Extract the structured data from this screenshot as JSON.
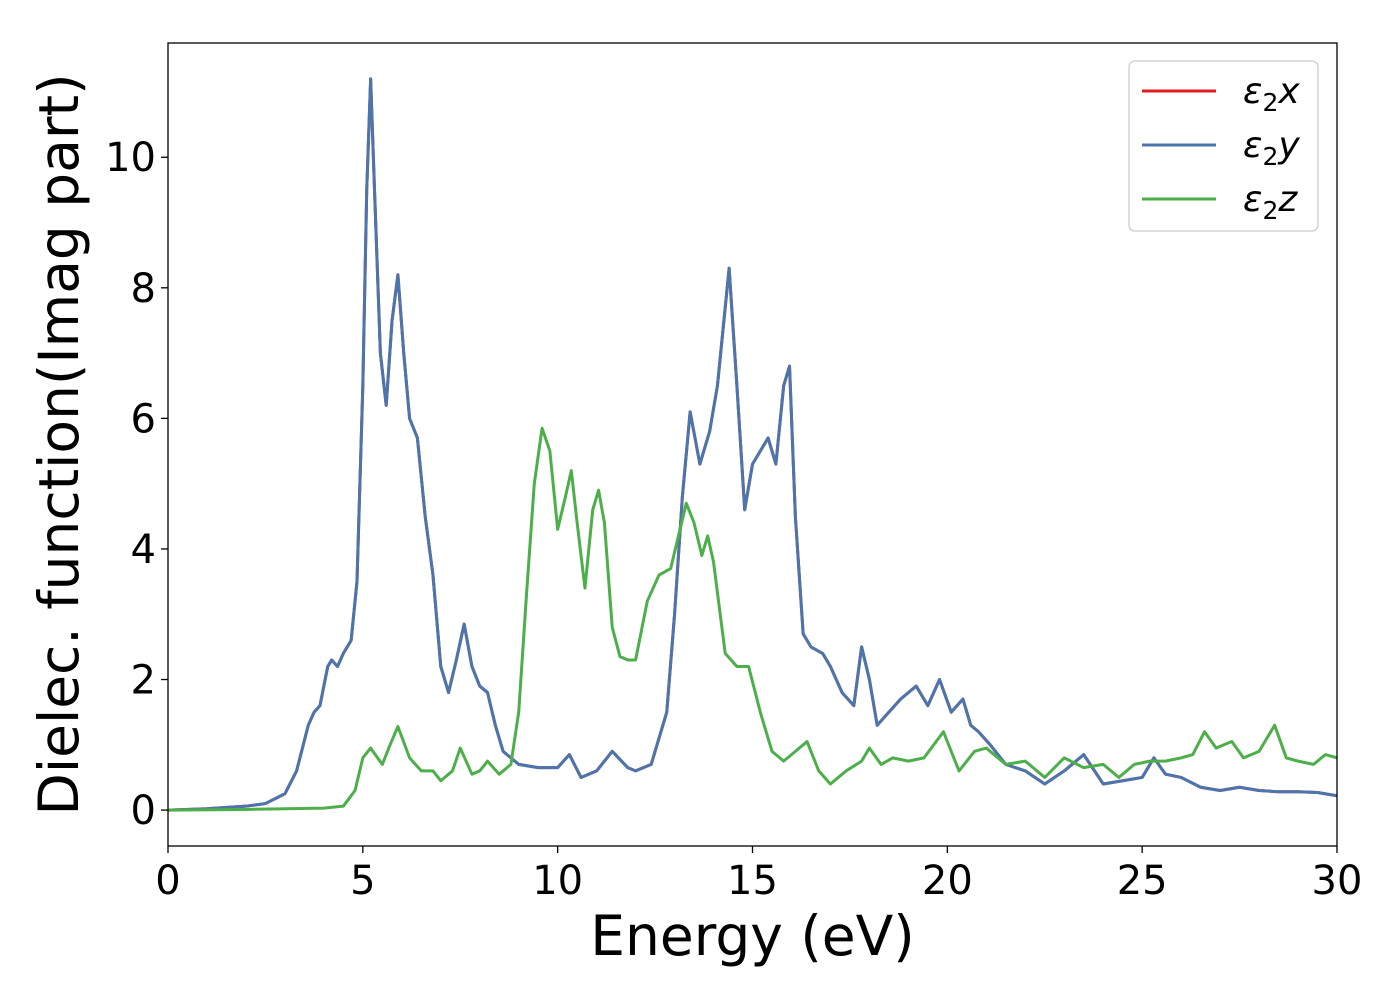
{
  "chart_data": {
    "type": "line",
    "title": "",
    "xlabel": "Energy (eV)",
    "ylabel": "Dielec. function(Imag part)",
    "xlim": [
      0,
      30
    ],
    "ylim": [
      -0.55,
      11.75
    ],
    "xticks": [
      0,
      5,
      10,
      15,
      20,
      25,
      30
    ],
    "yticks": [
      0,
      2,
      4,
      6,
      8,
      10
    ],
    "grid": false,
    "legend_position": "top-right",
    "series": [
      {
        "name": "ε₂x",
        "legend_base": "ε",
        "legend_sub": "2",
        "legend_var": "x",
        "color": "#e41a1c",
        "x": [
          0,
          1,
          2,
          2.5,
          3,
          3.3,
          3.6,
          3.75,
          3.9,
          4.1,
          4.2,
          4.35,
          4.5,
          4.7,
          4.85,
          5.0,
          5.1,
          5.2,
          5.3,
          5.45,
          5.6,
          5.75,
          5.9,
          6.05,
          6.2,
          6.4,
          6.6,
          6.8,
          7.0,
          7.2,
          7.4,
          7.6,
          7.8,
          8.0,
          8.2,
          8.4,
          8.6,
          9.0,
          9.5,
          10.0,
          10.3,
          10.6,
          11.0,
          11.4,
          11.8,
          12.0,
          12.4,
          12.8,
          13.0,
          13.2,
          13.4,
          13.65,
          13.9,
          14.1,
          14.4,
          14.6,
          14.8,
          15.0,
          15.2,
          15.4,
          15.6,
          15.8,
          15.95,
          16.1,
          16.3,
          16.5,
          16.8,
          17.0,
          17.3,
          17.6,
          17.8,
          18.0,
          18.2,
          18.5,
          18.8,
          19.2,
          19.5,
          19.8,
          20.1,
          20.4,
          20.6,
          20.8,
          21.1,
          21.5,
          22.0,
          22.5,
          23.0,
          23.5,
          24.0,
          24.5,
          25.0,
          25.3,
          25.6,
          26.0,
          26.5,
          27.0,
          27.5,
          28.0,
          28.5,
          29.0,
          29.5,
          30.0
        ],
        "y": [
          0,
          0.02,
          0.06,
          0.1,
          0.25,
          0.6,
          1.3,
          1.5,
          1.6,
          2.2,
          2.3,
          2.2,
          2.4,
          2.6,
          3.5,
          6.5,
          9.5,
          11.2,
          9.5,
          7.0,
          6.2,
          7.5,
          8.2,
          7.0,
          6.0,
          5.7,
          4.5,
          3.6,
          2.2,
          1.8,
          2.3,
          2.85,
          2.2,
          1.9,
          1.8,
          1.3,
          0.9,
          0.7,
          0.65,
          0.65,
          0.85,
          0.5,
          0.6,
          0.9,
          0.65,
          0.6,
          0.7,
          1.5,
          3.0,
          4.8,
          6.1,
          5.3,
          5.8,
          6.5,
          8.3,
          6.5,
          4.6,
          5.3,
          5.5,
          5.7,
          5.3,
          6.5,
          6.8,
          4.5,
          2.7,
          2.5,
          2.4,
          2.2,
          1.8,
          1.6,
          2.5,
          2.0,
          1.3,
          1.5,
          1.7,
          1.9,
          1.6,
          2.0,
          1.5,
          1.7,
          1.3,
          1.2,
          1.0,
          0.7,
          0.6,
          0.4,
          0.6,
          0.85,
          0.4,
          0.45,
          0.5,
          0.8,
          0.55,
          0.5,
          0.35,
          0.3,
          0.35,
          0.3,
          0.28,
          0.28,
          0.27,
          0.22
        ]
      },
      {
        "name": "ε₂y",
        "legend_base": "ε",
        "legend_sub": "2",
        "legend_var": "y",
        "color": "#4a76ad",
        "x": [
          0,
          1,
          2,
          2.5,
          3,
          3.3,
          3.6,
          3.75,
          3.9,
          4.1,
          4.2,
          4.35,
          4.5,
          4.7,
          4.85,
          5.0,
          5.1,
          5.2,
          5.3,
          5.45,
          5.6,
          5.75,
          5.9,
          6.05,
          6.2,
          6.4,
          6.6,
          6.8,
          7.0,
          7.2,
          7.4,
          7.6,
          7.8,
          8.0,
          8.2,
          8.4,
          8.6,
          9.0,
          9.5,
          10.0,
          10.3,
          10.6,
          11.0,
          11.4,
          11.8,
          12.0,
          12.4,
          12.8,
          13.0,
          13.2,
          13.4,
          13.65,
          13.9,
          14.1,
          14.4,
          14.6,
          14.8,
          15.0,
          15.2,
          15.4,
          15.6,
          15.8,
          15.95,
          16.1,
          16.3,
          16.5,
          16.8,
          17.0,
          17.3,
          17.6,
          17.8,
          18.0,
          18.2,
          18.5,
          18.8,
          19.2,
          19.5,
          19.8,
          20.1,
          20.4,
          20.6,
          20.8,
          21.1,
          21.5,
          22.0,
          22.5,
          23.0,
          23.5,
          24.0,
          24.5,
          25.0,
          25.3,
          25.6,
          26.0,
          26.5,
          27.0,
          27.5,
          28.0,
          28.5,
          29.0,
          29.5,
          30.0
        ],
        "y": [
          0,
          0.02,
          0.06,
          0.1,
          0.25,
          0.6,
          1.3,
          1.5,
          1.6,
          2.2,
          2.3,
          2.2,
          2.4,
          2.6,
          3.5,
          6.5,
          9.5,
          11.2,
          9.5,
          7.0,
          6.2,
          7.5,
          8.2,
          7.0,
          6.0,
          5.7,
          4.5,
          3.6,
          2.2,
          1.8,
          2.3,
          2.85,
          2.2,
          1.9,
          1.8,
          1.3,
          0.9,
          0.7,
          0.65,
          0.65,
          0.85,
          0.5,
          0.6,
          0.9,
          0.65,
          0.6,
          0.7,
          1.5,
          3.0,
          4.8,
          6.1,
          5.3,
          5.8,
          6.5,
          8.3,
          6.5,
          4.6,
          5.3,
          5.5,
          5.7,
          5.3,
          6.5,
          6.8,
          4.5,
          2.7,
          2.5,
          2.4,
          2.2,
          1.8,
          1.6,
          2.5,
          2.0,
          1.3,
          1.5,
          1.7,
          1.9,
          1.6,
          2.0,
          1.5,
          1.7,
          1.3,
          1.2,
          1.0,
          0.7,
          0.6,
          0.4,
          0.6,
          0.85,
          0.4,
          0.45,
          0.5,
          0.8,
          0.55,
          0.5,
          0.35,
          0.3,
          0.35,
          0.3,
          0.28,
          0.28,
          0.27,
          0.22
        ]
      },
      {
        "name": "ε₂z",
        "legend_base": "ε",
        "legend_sub": "2",
        "legend_var": "z",
        "color": "#4daf4a",
        "x": [
          0,
          2,
          4,
          4.5,
          4.8,
          5.0,
          5.2,
          5.5,
          5.7,
          5.9,
          6.2,
          6.5,
          6.8,
          7.0,
          7.3,
          7.5,
          7.8,
          8.0,
          8.2,
          8.5,
          8.8,
          9.0,
          9.2,
          9.4,
          9.6,
          9.8,
          10.0,
          10.2,
          10.35,
          10.5,
          10.7,
          10.9,
          11.05,
          11.2,
          11.4,
          11.6,
          11.8,
          12.0,
          12.3,
          12.6,
          12.9,
          13.1,
          13.3,
          13.5,
          13.7,
          13.85,
          14.0,
          14.3,
          14.6,
          14.9,
          15.2,
          15.5,
          15.8,
          16.1,
          16.4,
          16.7,
          17.0,
          17.4,
          17.8,
          18.0,
          18.3,
          18.6,
          19.0,
          19.4,
          19.9,
          20.3,
          20.7,
          21.0,
          21.5,
          22.0,
          22.5,
          23.0,
          23.5,
          24.0,
          24.4,
          24.8,
          25.2,
          25.6,
          26.0,
          26.3,
          26.6,
          26.9,
          27.3,
          27.6,
          28.0,
          28.4,
          28.7,
          29.0,
          29.4,
          29.7,
          30.0
        ],
        "y": [
          0,
          0.01,
          0.03,
          0.06,
          0.3,
          0.8,
          0.95,
          0.7,
          1.0,
          1.28,
          0.8,
          0.6,
          0.6,
          0.45,
          0.6,
          0.95,
          0.55,
          0.6,
          0.75,
          0.55,
          0.7,
          1.5,
          3.3,
          5.0,
          5.85,
          5.5,
          4.3,
          4.8,
          5.2,
          4.4,
          3.4,
          4.6,
          4.9,
          4.4,
          2.8,
          2.35,
          2.3,
          2.3,
          3.2,
          3.6,
          3.7,
          4.2,
          4.7,
          4.4,
          3.9,
          4.2,
          3.8,
          2.4,
          2.2,
          2.2,
          1.5,
          0.9,
          0.75,
          0.9,
          1.05,
          0.6,
          0.4,
          0.6,
          0.75,
          0.95,
          0.7,
          0.8,
          0.75,
          0.8,
          1.2,
          0.6,
          0.9,
          0.95,
          0.7,
          0.75,
          0.5,
          0.8,
          0.65,
          0.7,
          0.5,
          0.7,
          0.75,
          0.75,
          0.8,
          0.85,
          1.2,
          0.95,
          1.05,
          0.8,
          0.9,
          1.3,
          0.8,
          0.75,
          0.7,
          0.85,
          0.8
        ]
      }
    ]
  }
}
